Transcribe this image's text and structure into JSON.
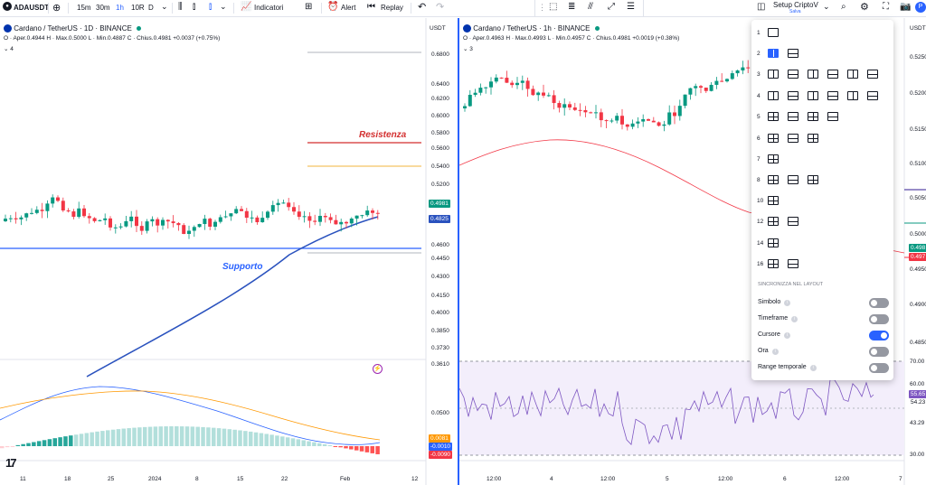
{
  "toolbar": {
    "symbol": "ADAUSDT",
    "intervals": [
      "15m",
      "30m",
      "1h",
      "10R",
      "D"
    ],
    "indicators_label": "Indicatori",
    "alert_label": "Alert",
    "replay_label": "Replay",
    "layout_name": "Setup CriptoV",
    "layout_status": "Salva"
  },
  "left_chart": {
    "title": "Cardano / TetherUS · 1D · BINANCE",
    "ohlc": "O · Aper.0.4944  H · Max.0.5000  L · Min.0.4887  C · Chius.0.4981  +0.0037 (+0.75%)",
    "indicator_count": "4",
    "currency": "USDT",
    "price_ticks": [
      "0.6800",
      "0.6400",
      "0.6200",
      "0.6000",
      "0.5800",
      "0.5600",
      "0.5400",
      "0.5200",
      "0.5000",
      "0.4800",
      "0.4600",
      "0.4450",
      "0.4300",
      "0.4150",
      "0.4000",
      "0.3850",
      "0.3730",
      "0.3610",
      "0.0500"
    ],
    "price_tag": "0.4981",
    "ma_tag": "0.4825",
    "macd_tags": [
      "0.0081",
      "-0.0010",
      "-0.0090"
    ],
    "annotations": {
      "resistance": "Resistenza",
      "support": "Supporto"
    },
    "time_labels": [
      "11",
      "18",
      "25",
      "2024",
      "8",
      "15",
      "22",
      "Feb",
      "12"
    ]
  },
  "right_chart": {
    "title": "Cardano / TetherUS · 1h · BINANCE",
    "ohlc": "O · Aper.0.4963  H · Max.0.4993  L · Min.0.4957  C · Chius.0.4981  +0.0019 (+0.38%)",
    "indicator_count": "3",
    "currency": "USDT",
    "price_ticks": [
      "0.5250",
      "0.5200",
      "0.5150",
      "0.5100",
      "0.5050",
      "0.5000",
      "0.4950",
      "0.4900",
      "0.4850",
      "70.00",
      "60.00",
      "43.29",
      "30.00"
    ],
    "price_tags": [
      "0.498",
      "0.497"
    ],
    "rsi_tags": [
      "55.65",
      "54.23"
    ],
    "time_labels": [
      "12:00",
      "4",
      "12:00",
      "5",
      "12:00",
      "6",
      "12:00",
      "7"
    ]
  },
  "layout_menu": {
    "rows": [
      {
        "n": "1",
        "count": 1
      },
      {
        "n": "2",
        "count": 2
      },
      {
        "n": "3",
        "count": 6
      },
      {
        "n": "4",
        "count": 6
      },
      {
        "n": "5",
        "count": 4
      },
      {
        "n": "6",
        "count": 3
      },
      {
        "n": "7",
        "count": 1
      },
      {
        "n": "8",
        "count": 3
      },
      {
        "n": "10",
        "count": 1
      },
      {
        "n": "12",
        "count": 2
      },
      {
        "n": "14",
        "count": 1
      },
      {
        "n": "16",
        "count": 2
      }
    ],
    "sync_title": "SINCRONIZZA NEL LAYOUT",
    "sync_options": [
      {
        "label": "Simbolo",
        "on": false
      },
      {
        "label": "Timeframe",
        "on": false
      },
      {
        "label": "Cursore",
        "on": true
      },
      {
        "label": "Ora",
        "on": false
      },
      {
        "label": "Range temporale",
        "on": false
      }
    ]
  },
  "colors": {
    "up": "#089981",
    "down": "#f23645",
    "accent": "#2962ff",
    "ma": "#2a52be",
    "resistance": "#d32f2f",
    "support": "#2962ff"
  }
}
